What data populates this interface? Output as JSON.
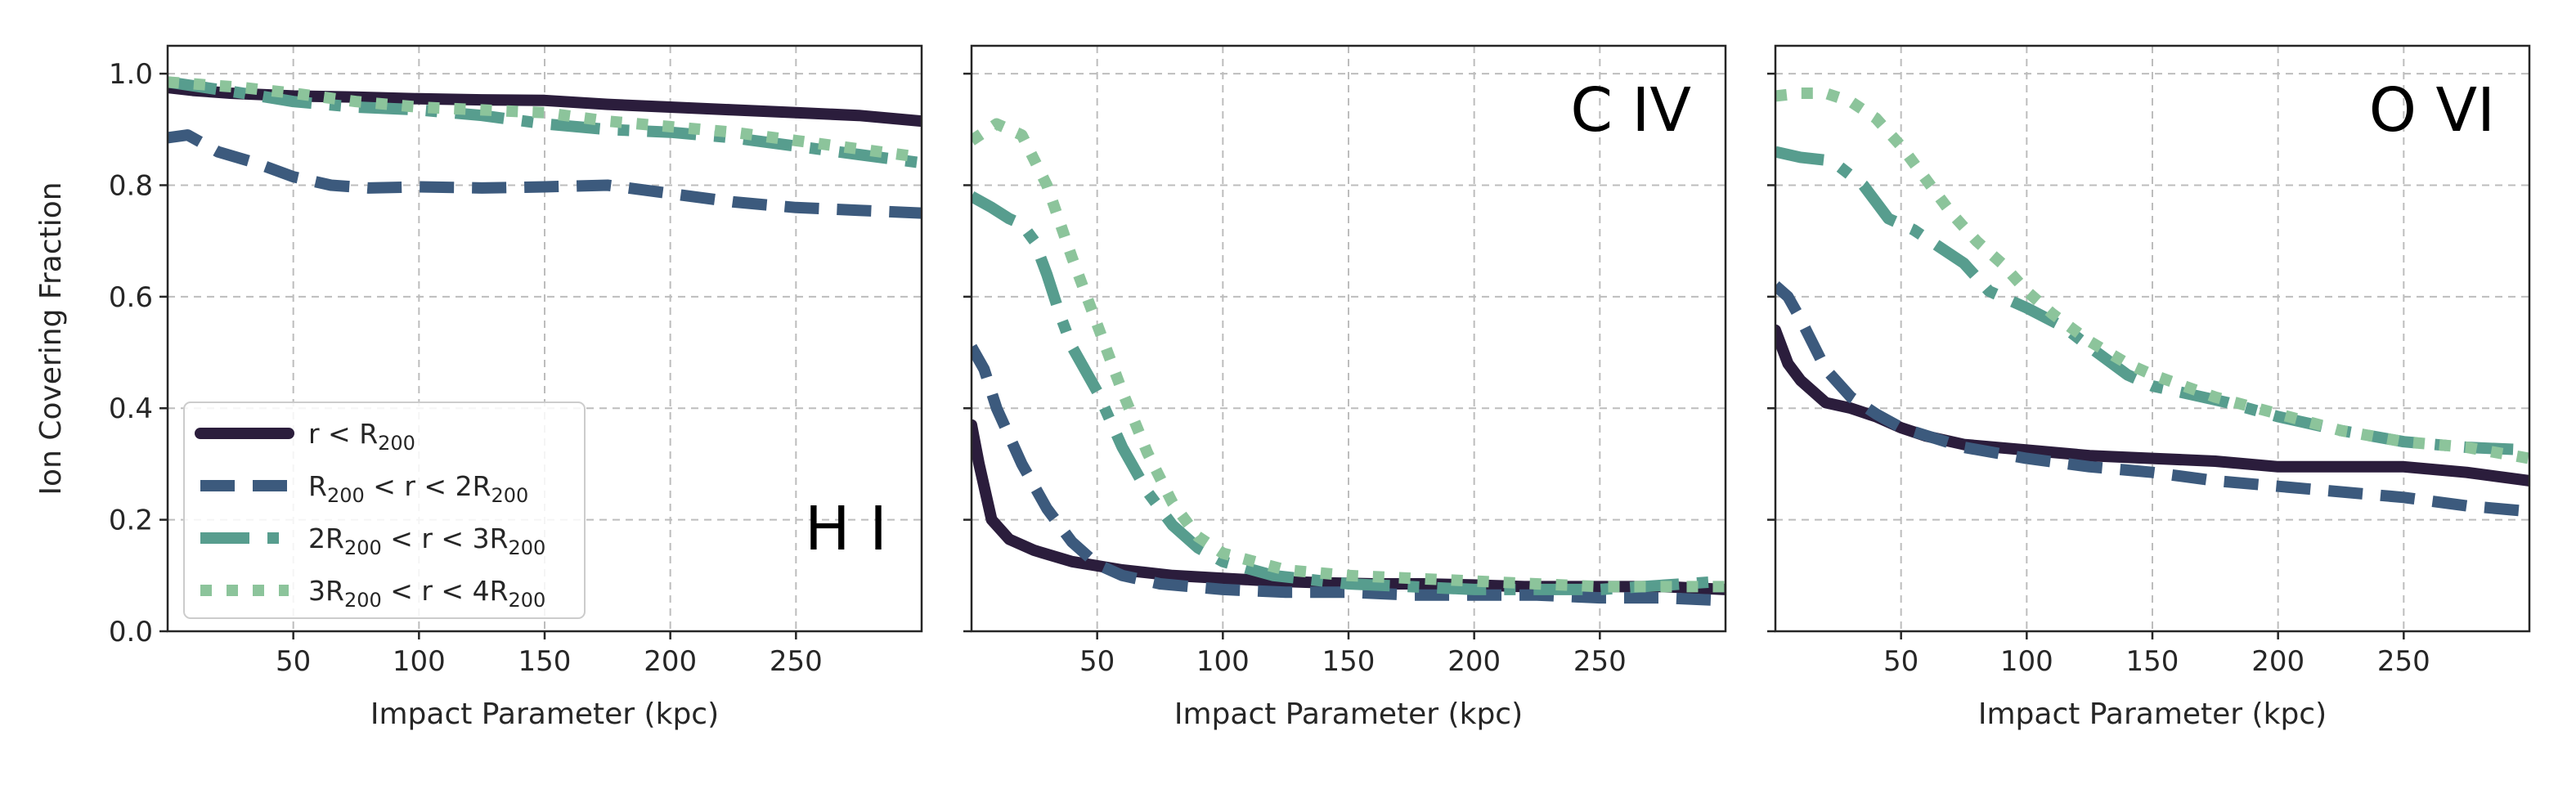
{
  "chart_data": [
    {
      "type": "line",
      "panel_label": "H I",
      "xlabel": "Impact Parameter (kpc)",
      "ylabel": "Ion Covering Fraction",
      "xlim": [
        0,
        300
      ],
      "ylim": [
        0,
        1.05
      ],
      "xticks": [
        50,
        100,
        150,
        200,
        250
      ],
      "yticks": [
        0.0,
        0.2,
        0.4,
        0.6,
        0.8,
        1.0
      ],
      "ytick_labels": [
        "0.0",
        "0.2",
        "0.4",
        "0.6",
        "0.8",
        "1.0"
      ],
      "grid": true,
      "legend": "lower-left",
      "series": [
        {
          "label": [
            "r < R",
            "200",
            ""
          ],
          "color": "#2b1d3c",
          "style": "solid",
          "x": [
            0,
            10,
            25,
            50,
            75,
            100,
            125,
            150,
            175,
            200,
            225,
            250,
            275,
            300
          ],
          "y": [
            0.975,
            0.97,
            0.965,
            0.96,
            0.958,
            0.955,
            0.953,
            0.952,
            0.945,
            0.94,
            0.935,
            0.93,
            0.925,
            0.915
          ]
        },
        {
          "label": [
            "R",
            "200",
            " < r < 2R",
            "200",
            ""
          ],
          "color": "#3c5a7d",
          "style": "dashed",
          "x": [
            0,
            8,
            20,
            35,
            50,
            65,
            80,
            100,
            125,
            150,
            175,
            200,
            225,
            250,
            275,
            300
          ],
          "y": [
            0.885,
            0.89,
            0.86,
            0.84,
            0.815,
            0.8,
            0.795,
            0.797,
            0.795,
            0.797,
            0.8,
            0.785,
            0.77,
            0.76,
            0.755,
            0.75
          ]
        },
        {
          "label": [
            "2R",
            "200",
            " < r < 3R",
            "200",
            ""
          ],
          "color": "#579d8e",
          "style": "dashdot",
          "x": [
            0,
            15,
            30,
            50,
            75,
            100,
            125,
            150,
            175,
            200,
            225,
            250,
            275,
            300
          ],
          "y": [
            0.985,
            0.975,
            0.965,
            0.95,
            0.94,
            0.935,
            0.925,
            0.91,
            0.9,
            0.895,
            0.885,
            0.87,
            0.855,
            0.84
          ]
        },
        {
          "label": [
            "3R",
            "200",
            " < r < 4R",
            "200",
            ""
          ],
          "color": "#8cc49b",
          "style": "dotted",
          "x": [
            0,
            15,
            30,
            50,
            75,
            100,
            125,
            150,
            175,
            200,
            225,
            250,
            275,
            300
          ],
          "y": [
            0.985,
            0.98,
            0.975,
            0.965,
            0.95,
            0.94,
            0.935,
            0.93,
            0.915,
            0.905,
            0.895,
            0.88,
            0.865,
            0.85
          ]
        }
      ]
    },
    {
      "type": "line",
      "panel_label": "C IV",
      "xlabel": "Impact Parameter (kpc)",
      "xlim": [
        0,
        300
      ],
      "ylim": [
        0,
        1.05
      ],
      "xticks": [
        50,
        100,
        150,
        200,
        250
      ],
      "yticks": [
        0.0,
        0.2,
        0.4,
        0.6,
        0.8,
        1.0
      ],
      "grid": true,
      "series": [
        {
          "color": "#2b1d3c",
          "style": "solid",
          "x": [
            0,
            3,
            8,
            15,
            25,
            40,
            60,
            80,
            100,
            120,
            140,
            160,
            180,
            200,
            220,
            250,
            275,
            300
          ],
          "y": [
            0.37,
            0.3,
            0.2,
            0.165,
            0.145,
            0.125,
            0.11,
            0.1,
            0.095,
            0.09,
            0.087,
            0.085,
            0.085,
            0.083,
            0.08,
            0.08,
            0.08,
            0.075
          ]
        },
        {
          "color": "#3c5a7d",
          "style": "dashed",
          "x": [
            0,
            5,
            10,
            20,
            30,
            40,
            50,
            60,
            75,
            100,
            125,
            150,
            175,
            200,
            225,
            250,
            275,
            300
          ],
          "y": [
            0.51,
            0.47,
            0.4,
            0.3,
            0.22,
            0.16,
            0.12,
            0.1,
            0.085,
            0.075,
            0.07,
            0.07,
            0.065,
            0.065,
            0.065,
            0.06,
            0.06,
            0.055
          ]
        },
        {
          "color": "#579d8e",
          "style": "dashdot",
          "x": [
            0,
            8,
            15,
            20,
            25,
            30,
            35,
            40,
            50,
            60,
            70,
            80,
            90,
            100,
            120,
            150,
            200,
            250,
            300
          ],
          "y": [
            0.78,
            0.76,
            0.74,
            0.73,
            0.7,
            0.64,
            0.57,
            0.51,
            0.43,
            0.33,
            0.25,
            0.19,
            0.15,
            0.125,
            0.1,
            0.085,
            0.075,
            0.075,
            0.09
          ]
        },
        {
          "color": "#8cc49b",
          "style": "dotted",
          "x": [
            0,
            10,
            20,
            30,
            40,
            50,
            60,
            70,
            80,
            90,
            100,
            125,
            150,
            200,
            250,
            300
          ],
          "y": [
            0.88,
            0.91,
            0.89,
            0.8,
            0.67,
            0.55,
            0.43,
            0.32,
            0.23,
            0.17,
            0.14,
            0.11,
            0.1,
            0.09,
            0.08,
            0.08
          ]
        }
      ]
    },
    {
      "type": "line",
      "panel_label": "O VI",
      "xlabel": "Impact Parameter (kpc)",
      "xlim": [
        0,
        300
      ],
      "ylim": [
        0,
        1.05
      ],
      "xticks": [
        50,
        100,
        150,
        200,
        250
      ],
      "yticks": [
        0.0,
        0.2,
        0.4,
        0.6,
        0.8,
        1.0
      ],
      "grid": true,
      "series": [
        {
          "color": "#2b1d3c",
          "style": "solid",
          "x": [
            0,
            5,
            10,
            20,
            30,
            40,
            50,
            60,
            75,
            100,
            125,
            150,
            175,
            200,
            225,
            250,
            275,
            300
          ],
          "y": [
            0.54,
            0.48,
            0.45,
            0.41,
            0.4,
            0.385,
            0.365,
            0.35,
            0.335,
            0.325,
            0.315,
            0.31,
            0.305,
            0.295,
            0.295,
            0.295,
            0.285,
            0.27
          ]
        },
        {
          "color": "#3c5a7d",
          "style": "dashed",
          "x": [
            0,
            5,
            10,
            20,
            30,
            40,
            50,
            75,
            100,
            125,
            150,
            175,
            200,
            225,
            250,
            275,
            300
          ],
          "y": [
            0.62,
            0.6,
            0.56,
            0.47,
            0.42,
            0.39,
            0.365,
            0.33,
            0.31,
            0.295,
            0.285,
            0.27,
            0.26,
            0.25,
            0.24,
            0.225,
            0.215
          ]
        },
        {
          "color": "#579d8e",
          "style": "dashdot",
          "x": [
            0,
            10,
            20,
            25,
            35,
            45,
            55,
            65,
            75,
            85,
            100,
            115,
            125,
            140,
            150,
            165,
            180,
            200,
            225,
            250,
            275,
            300
          ],
          "y": [
            0.86,
            0.85,
            0.845,
            0.835,
            0.8,
            0.74,
            0.72,
            0.69,
            0.66,
            0.61,
            0.58,
            0.545,
            0.51,
            0.46,
            0.44,
            0.425,
            0.41,
            0.385,
            0.36,
            0.34,
            0.33,
            0.325
          ]
        },
        {
          "color": "#8cc49b",
          "style": "dotted",
          "x": [
            0,
            10,
            20,
            30,
            40,
            50,
            60,
            70,
            80,
            90,
            100,
            110,
            125,
            140,
            150,
            175,
            200,
            225,
            250,
            275,
            300
          ],
          "y": [
            0.96,
            0.965,
            0.965,
            0.95,
            0.92,
            0.87,
            0.81,
            0.75,
            0.7,
            0.66,
            0.61,
            0.57,
            0.52,
            0.48,
            0.46,
            0.42,
            0.39,
            0.36,
            0.34,
            0.33,
            0.31
          ]
        }
      ]
    }
  ]
}
